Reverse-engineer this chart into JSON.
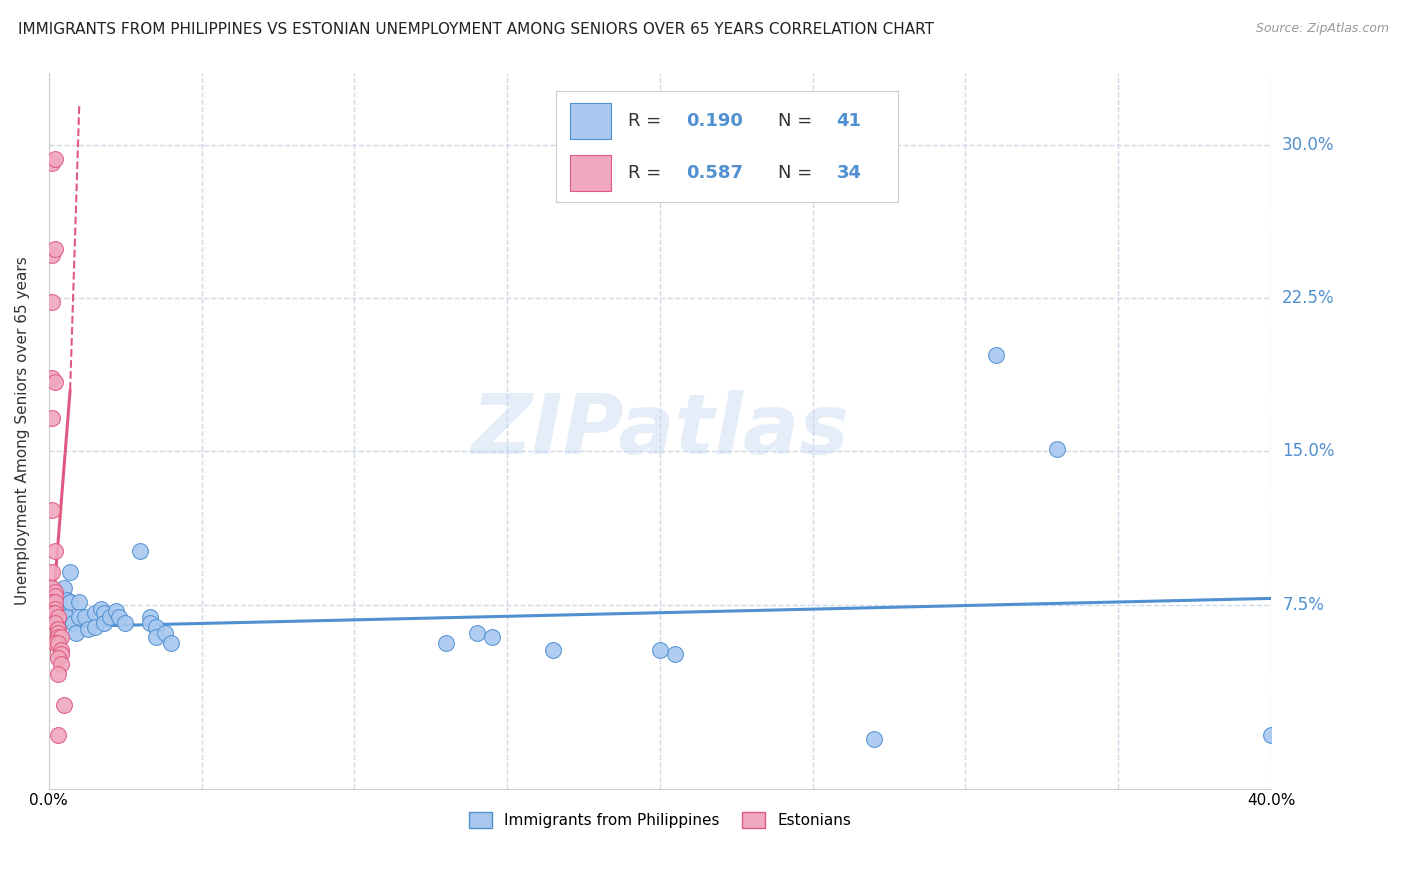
{
  "title": "IMMIGRANTS FROM PHILIPPINES VS ESTONIAN UNEMPLOYMENT AMONG SENIORS OVER 65 YEARS CORRELATION CHART",
  "source": "Source: ZipAtlas.com",
  "ylabel": "Unemployment Among Seniors over 65 years",
  "xlim": [
    0.0,
    0.4
  ],
  "ylim": [
    -0.015,
    0.335
  ],
  "yticks": [
    0.075,
    0.15,
    0.225,
    0.3
  ],
  "ytick_labels": [
    "7.5%",
    "15.0%",
    "22.5%",
    "30.0%"
  ],
  "xticks": [
    0.0,
    0.05,
    0.1,
    0.15,
    0.2,
    0.25,
    0.3,
    0.35,
    0.4
  ],
  "blue_color": "#a8c8f0",
  "pink_color": "#f0a8be",
  "blue_line_color": "#5090d0",
  "pink_line_color": "#e05880",
  "blue_scatter": [
    [
      0.002,
      0.082
    ],
    [
      0.003,
      0.076
    ],
    [
      0.003,
      0.069
    ],
    [
      0.004,
      0.079
    ],
    [
      0.004,
      0.071
    ],
    [
      0.005,
      0.083
    ],
    [
      0.005,
      0.073
    ],
    [
      0.006,
      0.077
    ],
    [
      0.006,
      0.069
    ],
    [
      0.007,
      0.091
    ],
    [
      0.007,
      0.076
    ],
    [
      0.008,
      0.066
    ],
    [
      0.009,
      0.061
    ],
    [
      0.01,
      0.076
    ],
    [
      0.01,
      0.069
    ],
    [
      0.012,
      0.069
    ],
    [
      0.013,
      0.063
    ],
    [
      0.015,
      0.071
    ],
    [
      0.015,
      0.064
    ],
    [
      0.017,
      0.073
    ],
    [
      0.018,
      0.071
    ],
    [
      0.018,
      0.066
    ],
    [
      0.02,
      0.069
    ],
    [
      0.022,
      0.072
    ],
    [
      0.023,
      0.069
    ],
    [
      0.025,
      0.066
    ],
    [
      0.03,
      0.101
    ],
    [
      0.033,
      0.069
    ],
    [
      0.033,
      0.066
    ],
    [
      0.035,
      0.064
    ],
    [
      0.035,
      0.059
    ],
    [
      0.038,
      0.061
    ],
    [
      0.04,
      0.056
    ],
    [
      0.13,
      0.056
    ],
    [
      0.14,
      0.061
    ],
    [
      0.145,
      0.059
    ],
    [
      0.165,
      0.053
    ],
    [
      0.2,
      0.053
    ],
    [
      0.205,
      0.051
    ],
    [
      0.27,
      0.009
    ],
    [
      0.31,
      0.197
    ],
    [
      0.33,
      0.151
    ],
    [
      0.4,
      0.011
    ]
  ],
  "pink_scatter": [
    [
      0.001,
      0.291
    ],
    [
      0.002,
      0.293
    ],
    [
      0.001,
      0.246
    ],
    [
      0.002,
      0.249
    ],
    [
      0.001,
      0.223
    ],
    [
      0.001,
      0.186
    ],
    [
      0.002,
      0.184
    ],
    [
      0.001,
      0.166
    ],
    [
      0.001,
      0.121
    ],
    [
      0.002,
      0.101
    ],
    [
      0.001,
      0.091
    ],
    [
      0.001,
      0.083
    ],
    [
      0.002,
      0.081
    ],
    [
      0.002,
      0.079
    ],
    [
      0.001,
      0.076
    ],
    [
      0.002,
      0.076
    ],
    [
      0.002,
      0.073
    ],
    [
      0.001,
      0.071
    ],
    [
      0.002,
      0.071
    ],
    [
      0.003,
      0.069
    ],
    [
      0.002,
      0.066
    ],
    [
      0.003,
      0.063
    ],
    [
      0.003,
      0.061
    ],
    [
      0.003,
      0.059
    ],
    [
      0.004,
      0.059
    ],
    [
      0.002,
      0.056
    ],
    [
      0.003,
      0.056
    ],
    [
      0.004,
      0.053
    ],
    [
      0.004,
      0.051
    ],
    [
      0.003,
      0.049
    ],
    [
      0.004,
      0.046
    ],
    [
      0.003,
      0.041
    ],
    [
      0.003,
      0.011
    ],
    [
      0.005,
      0.026
    ]
  ],
  "blue_trendline": [
    0.0,
    0.064,
    0.4,
    0.078
  ],
  "pink_trendline_solid": [
    0.0,
    0.048,
    0.007,
    0.18
  ],
  "pink_trendline_dashed": [
    0.007,
    0.18,
    0.01,
    0.32
  ],
  "watermark_text": "ZIPatlas",
  "watermark_color": "#c5d8f0",
  "watermark_alpha": 0.45,
  "background_color": "#ffffff",
  "grid_color": "#d0d8e8",
  "title_fontsize": 11,
  "source_fontsize": 9,
  "ylabel_fontsize": 11,
  "ytick_fontsize": 12,
  "xtick_fontsize": 11,
  "legend_fontsize": 13
}
